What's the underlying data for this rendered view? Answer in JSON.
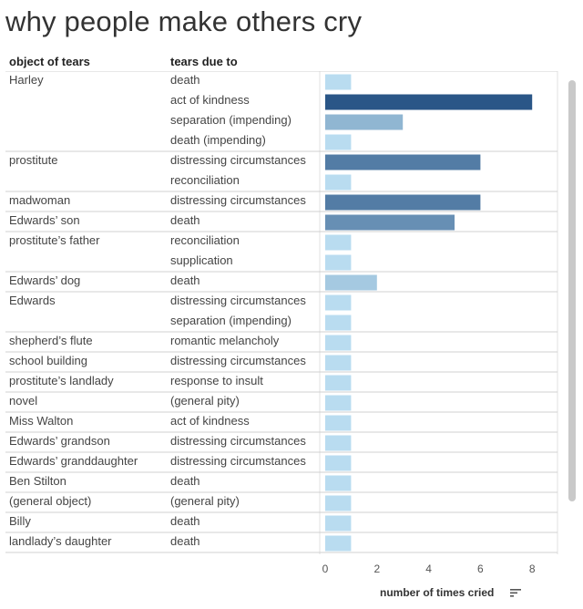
{
  "title": "why people make others cry",
  "headers": {
    "object": "object of tears",
    "due": "tears due to"
  },
  "axis": {
    "title": "number of times cried",
    "ticks": [
      "0",
      "2",
      "4",
      "6",
      "8"
    ]
  },
  "icons": {
    "sort": "sort-descending-icon"
  },
  "colors": {
    "light": "#b9dcf0",
    "mid": "#8ab9df",
    "dark": "#2f5f8f"
  },
  "chart_data": {
    "type": "bar",
    "orientation": "horizontal",
    "xlabel": "number of times cried",
    "xlim": [
      0,
      8.5
    ],
    "groups": [
      {
        "object": "Harley",
        "rows": [
          {
            "due": "death",
            "value": 1
          },
          {
            "due": "act of kindness",
            "value": 8
          },
          {
            "due": "separation (impending)",
            "value": 3
          },
          {
            "due": "death (impending)",
            "value": 1
          }
        ]
      },
      {
        "object": "prostitute",
        "rows": [
          {
            "due": "distressing circumstances",
            "value": 6
          },
          {
            "due": "reconciliation",
            "value": 1
          }
        ]
      },
      {
        "object": "madwoman",
        "rows": [
          {
            "due": "distressing circumstances",
            "value": 6
          }
        ]
      },
      {
        "object": "Edwards’ son",
        "rows": [
          {
            "due": "death",
            "value": 5
          }
        ]
      },
      {
        "object": "prostitute’s father",
        "rows": [
          {
            "due": "reconciliation",
            "value": 1
          },
          {
            "due": "supplication",
            "value": 1
          }
        ]
      },
      {
        "object": "Edwards’ dog",
        "rows": [
          {
            "due": "death",
            "value": 2
          }
        ]
      },
      {
        "object": "Edwards",
        "rows": [
          {
            "due": "distressing circumstances",
            "value": 1
          },
          {
            "due": "separation (impending)",
            "value": 1
          }
        ]
      },
      {
        "object": "shepherd’s flute",
        "rows": [
          {
            "due": "romantic melancholy",
            "value": 1
          }
        ]
      },
      {
        "object": "school building",
        "rows": [
          {
            "due": "distressing circumstances",
            "value": 1
          }
        ]
      },
      {
        "object": "prostitute’s landlady",
        "rows": [
          {
            "due": "response to insult",
            "value": 1
          }
        ]
      },
      {
        "object": "novel",
        "rows": [
          {
            "due": "(general pity)",
            "value": 1
          }
        ]
      },
      {
        "object": "Miss Walton",
        "rows": [
          {
            "due": "act of kindness",
            "value": 1
          }
        ]
      },
      {
        "object": "Edwards’ grandson",
        "rows": [
          {
            "due": "distressing circumstances",
            "value": 1
          }
        ]
      },
      {
        "object": "Edwards’ granddaughter",
        "rows": [
          {
            "due": "distressing circumstances",
            "value": 1
          }
        ]
      },
      {
        "object": "Ben Stilton",
        "rows": [
          {
            "due": "death",
            "value": 1
          }
        ]
      },
      {
        "object": "(general object)",
        "rows": [
          {
            "due": "(general pity)",
            "value": 1
          }
        ]
      },
      {
        "object": "Billy",
        "rows": [
          {
            "due": "death",
            "value": 1
          }
        ]
      },
      {
        "object": "landlady’s daughter",
        "rows": [
          {
            "due": "death",
            "value": 1
          }
        ]
      }
    ]
  }
}
